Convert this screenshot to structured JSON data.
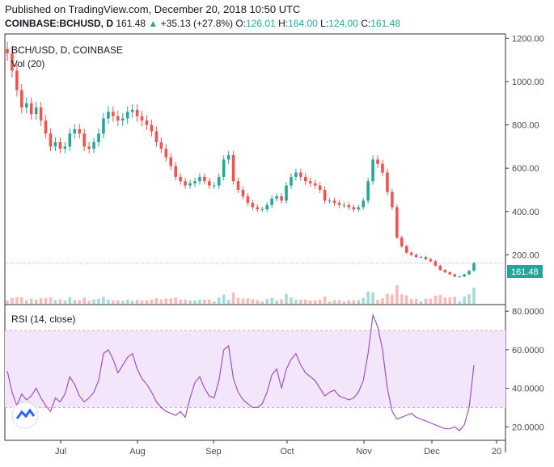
{
  "header": {
    "published": "Published on TradingView.com, December 20, 2018 10:50 UTC",
    "symbol": "COINBASE:BCHUSD, D",
    "last": "161.48",
    "change_arrow": "▲",
    "change": "+35.13 (+27.8%)",
    "o_label": "O:",
    "o_val": "126.01",
    "h_label": "H:",
    "h_val": "164.00",
    "l_label": "L:",
    "l_val": "124.00",
    "c_label": "C:",
    "c_val": "161.48"
  },
  "price_pane": {
    "title": "BCH/USD, D, COINBASE",
    "vol_label": "Vol (20)",
    "last_price_tag": "161.48",
    "y_ticks": [
      "1200.00",
      "1000.00",
      "800.00",
      "600.00",
      "400.00",
      "200.00"
    ]
  },
  "rsi_pane": {
    "title": "RSI (14, close)",
    "y_ticks": [
      "80.0000",
      "60.0000",
      "40.0000",
      "20.0000"
    ]
  },
  "x_ticks": [
    "Jul",
    "Aug",
    "Sep",
    "Oct",
    "Nov",
    "Dec",
    "20"
  ],
  "colors": {
    "up": "#26a69a",
    "down": "#ef5350",
    "rsi": "#a050c0",
    "rsi_band": "#f3e6fb"
  },
  "chart_data": {
    "type": "candlestick",
    "price_ylim": [
      0,
      1220
    ],
    "rsi_ylim": [
      13,
      83
    ],
    "rsi_band": [
      30,
      70
    ],
    "x_ticks": [
      "Jul",
      "Aug",
      "Sep",
      "Oct",
      "Nov",
      "Dec",
      "20"
    ],
    "close_series": [
      1130,
      1050,
      960,
      880,
      900,
      850,
      880,
      820,
      760,
      700,
      720,
      690,
      700,
      760,
      780,
      760,
      700,
      690,
      720,
      760,
      830,
      860,
      840,
      820,
      830,
      860,
      870,
      840,
      820,
      800,
      770,
      720,
      690,
      650,
      610,
      560,
      540,
      520,
      530,
      540,
      560,
      540,
      520,
      520,
      560,
      640,
      660,
      540,
      500,
      470,
      440,
      420,
      410,
      410,
      430,
      460,
      470,
      450,
      520,
      560,
      580,
      560,
      540,
      530,
      520,
      500,
      450,
      450,
      440,
      430,
      430,
      420,
      410,
      420,
      450,
      540,
      640,
      620,
      580,
      490,
      420,
      280,
      240,
      210,
      200,
      190,
      190,
      180,
      170,
      150,
      130,
      120,
      110,
      100,
      100,
      110,
      126,
      161.48
    ],
    "rsi_series": [
      49,
      38,
      31,
      37,
      34,
      36,
      40,
      35,
      31,
      28,
      35,
      33,
      37,
      46,
      42,
      36,
      33,
      35,
      38,
      44,
      58,
      60,
      55,
      48,
      52,
      56,
      58,
      50,
      45,
      42,
      38,
      33,
      30,
      28,
      27,
      26,
      28,
      25,
      35,
      43,
      46,
      40,
      36,
      35,
      44,
      60,
      62,
      45,
      38,
      34,
      32,
      30,
      30,
      32,
      38,
      47,
      50,
      40,
      50,
      55,
      58,
      52,
      48,
      46,
      44,
      40,
      36,
      38,
      39,
      36,
      35,
      34,
      35,
      38,
      44,
      58,
      78,
      72,
      60,
      40,
      28,
      24,
      25,
      26,
      27,
      25,
      24,
      23,
      22,
      21,
      20,
      19,
      19,
      20,
      18,
      21,
      30,
      52
    ]
  }
}
